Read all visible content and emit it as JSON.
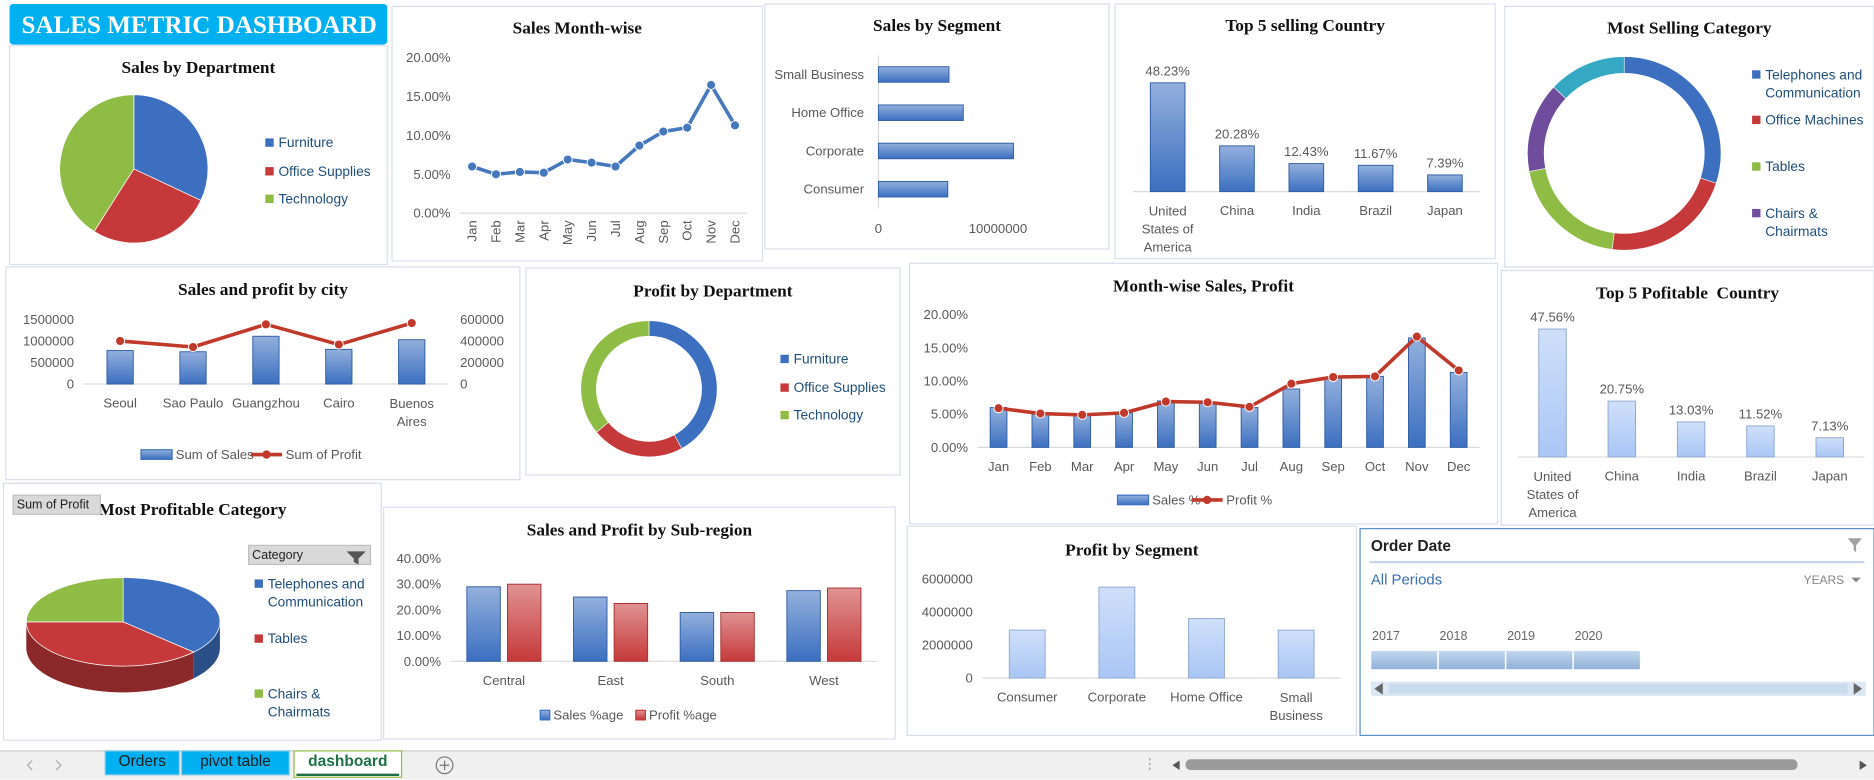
{
  "dashboard_title": "SALES METRIC DASHBOARD",
  "chart_data": [
    {
      "type": "pie",
      "title": "Sales by Department",
      "categories": [
        "Furniture",
        "Office Supplies",
        "Technology"
      ],
      "values": [
        32,
        27,
        41
      ],
      "colors": [
        "#3c6fbf",
        "#c6393a",
        "#8fbc45"
      ],
      "legend": "right"
    },
    {
      "type": "line",
      "title": "Sales Month-wise",
      "categories": [
        "Jan",
        "Feb",
        "Mar",
        "Apr",
        "May",
        "Jun",
        "Jul",
        "Aug",
        "Sep",
        "Oct",
        "Nov",
        "Dec"
      ],
      "values": [
        6.0,
        5.0,
        5.3,
        5.2,
        6.9,
        6.5,
        6.0,
        8.7,
        10.5,
        11.0,
        16.5,
        11.3
      ],
      "color": "#4678bd",
      "markers": true,
      "ylim": [
        0,
        20
      ],
      "yticks": [
        {
          "value": 0,
          "label": "0.00%"
        },
        {
          "value": 5,
          "label": "5.00%"
        },
        {
          "value": 10,
          "label": "10.00%"
        },
        {
          "value": 15,
          "label": "15.00%"
        },
        {
          "value": 20,
          "label": "20.00%"
        }
      ]
    },
    {
      "type": "bar",
      "orientation": "horizontal",
      "title": "Sales by Segment",
      "categories": [
        "Consumer",
        "Corporate",
        "Home Office",
        "Small Business"
      ],
      "values": [
        5800000,
        11300000,
        7100000,
        5900000
      ],
      "color": "#3b6fc0",
      "xlim": [
        0,
        18000000
      ],
      "xticks": [
        0,
        10000000
      ]
    },
    {
      "type": "bar",
      "title": "Top 5 selling Country",
      "categories": [
        "United States of America",
        "China",
        "India",
        "Brazil",
        "Japan"
      ],
      "values": [
        48.23,
        20.28,
        12.43,
        11.67,
        7.39
      ],
      "value_labels": [
        "48.23%",
        "20.28%",
        "12.43%",
        "11.67%",
        "7.39%"
      ],
      "color": "#3b6fc0"
    },
    {
      "type": "donut",
      "title": "Most Selling Category",
      "categories": [
        "Telephones and Communication",
        "Office Machines",
        "Tables",
        "Chairs & Chairmats",
        null
      ],
      "values": [
        30,
        22,
        20,
        15,
        13
      ],
      "colors": [
        "#3c6fbf",
        "#c6393a",
        "#8fbc45",
        "#6f4d9c",
        "#35a8c4"
      ],
      "legend": "right"
    },
    {
      "type": "combo",
      "title": "Sales and profit by city",
      "categories": [
        "Seoul",
        "Sao Paulo",
        "Guangzhou",
        "Cairo",
        "Buenos Aires"
      ],
      "series": [
        {
          "name": "Sum of Sales",
          "kind": "bar",
          "color": "#3b6fc0",
          "values": [
            778000,
            750000,
            1110000,
            805000,
            1030000
          ]
        },
        {
          "name": "Sum of Profit",
          "kind": "line",
          "axis": "y2",
          "color": "#c0392b",
          "values": [
            400000,
            344000,
            555000,
            367000,
            567000
          ]
        }
      ],
      "ylim": [
        0,
        1500000
      ],
      "yticks": [
        0,
        500000,
        1000000,
        1500000
      ],
      "y2lim": [
        0,
        600000
      ],
      "y2ticks": [
        0,
        200000,
        400000,
        600000
      ],
      "legend": "bottom"
    },
    {
      "type": "donut",
      "title": "Profit by Department",
      "categories": [
        "Furniture",
        "Office Supplies",
        "Technology"
      ],
      "values": [
        42,
        22,
        36
      ],
      "colors": [
        "#3c6fbf",
        "#c6393a",
        "#8fbc45"
      ],
      "legend": "right"
    },
    {
      "type": "combo",
      "title": "Month-wise Sales, Profit",
      "categories": [
        "Jan",
        "Feb",
        "Mar",
        "Apr",
        "May",
        "Jun",
        "Jul",
        "Aug",
        "Sep",
        "Oct",
        "Nov",
        "Dec"
      ],
      "series": [
        {
          "name": "Sales %",
          "kind": "bar",
          "color": "#3b6fc0",
          "values": [
            6.0,
            5.0,
            5.0,
            5.2,
            7.0,
            6.6,
            6.0,
            8.8,
            10.5,
            10.7,
            16.5,
            11.3
          ]
        },
        {
          "name": "Profit %",
          "kind": "line",
          "color": "#c0392b",
          "values": [
            5.9,
            5.1,
            4.9,
            5.2,
            6.9,
            6.8,
            6.1,
            9.6,
            10.6,
            10.7,
            16.7,
            11.6
          ]
        }
      ],
      "ylim": [
        0,
        20
      ],
      "yticks": [
        {
          "value": 0,
          "label": "0.00%"
        },
        {
          "value": 5,
          "label": "5.00%"
        },
        {
          "value": 10,
          "label": "10.00%"
        },
        {
          "value": 15,
          "label": "15.00%"
        },
        {
          "value": 20,
          "label": "20.00%"
        }
      ],
      "legend": "bottom"
    },
    {
      "type": "bar",
      "title": "Top 5 Pofitable  Country",
      "categories": [
        "United States of America",
        "China",
        "India",
        "Brazil",
        "Japan"
      ],
      "values": [
        47.56,
        20.75,
        13.03,
        11.52,
        7.13
      ],
      "value_labels": [
        "47.56%",
        "20.75%",
        "13.03%",
        "11.52%",
        "7.13%"
      ],
      "color": "#a9c6f5"
    },
    {
      "type": "pie",
      "3d": true,
      "title": "Most Profitable Category",
      "field_button": "Sum of Profit",
      "filter_button": "Category",
      "categories": [
        "Telephones and Communication",
        "Tables",
        "Chairs & Chairmats"
      ],
      "values": [
        37,
        38,
        25
      ],
      "colors": [
        "#3c6fbf",
        "#c6393a",
        "#8fbc45"
      ],
      "legend": "right"
    },
    {
      "type": "bar",
      "title": "Sales and Profit by Sub-region",
      "categories": [
        "Central",
        "East",
        "South",
        "West"
      ],
      "series": [
        {
          "name": "Sales %age",
          "color": "#3b6fc0",
          "values": [
            29,
            25,
            19,
            27.5
          ]
        },
        {
          "name": "Profit %age",
          "color": "#c6393a",
          "values": [
            30,
            22.5,
            19,
            28.5
          ]
        }
      ],
      "ylim": [
        0,
        40
      ],
      "yticks": [
        {
          "value": 0,
          "label": "0.00%"
        },
        {
          "value": 10,
          "label": "10.00%"
        },
        {
          "value": 20,
          "label": "20.00%"
        },
        {
          "value": 30,
          "label": "30.00%"
        },
        {
          "value": 40,
          "label": "40.00%"
        }
      ],
      "legend": "bottom"
    },
    {
      "type": "bar",
      "title": "Profit by Segment",
      "categories": [
        "Consumer",
        "Corporate",
        "Home Office",
        "Small Business"
      ],
      "values": [
        2900000,
        5500000,
        3600000,
        2900000
      ],
      "color": "#a9c6f5",
      "ylim": [
        0,
        6000000
      ],
      "yticks": [
        0,
        2000000,
        4000000,
        6000000
      ]
    }
  ],
  "slicer": {
    "title": "Order Date",
    "selection": "All Periods",
    "level": "YEARS",
    "periods": [
      "2017",
      "2018",
      "2019",
      "2020"
    ]
  },
  "tabs": [
    "Orders",
    "pivot table",
    "dashboard"
  ],
  "active_tab": 2
}
